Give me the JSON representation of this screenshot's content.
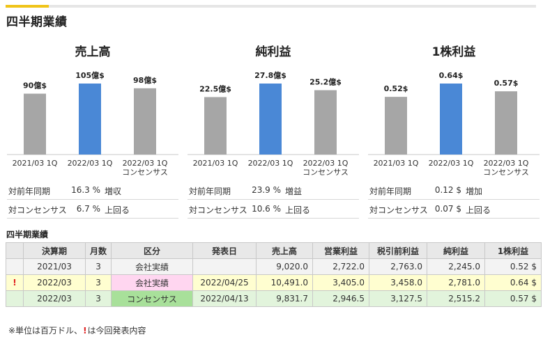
{
  "header": {
    "title": "四半期業績"
  },
  "colors": {
    "accent": "#f0c419",
    "bar_highlight": "#4a88d6",
    "bar_normal": "#a6a6a6",
    "row_new": "#fffed0",
    "row_consensus": "#e2f4dc",
    "kbn_actual": "#ffd6f0",
    "kbn_consensus": "#a8e09a",
    "mark": "#e02020"
  },
  "chart_data": [
    {
      "type": "bar",
      "title": "売上高",
      "categories": [
        "2021/03 1Q",
        "2022/03 1Q",
        "2022/03 1Q\nコンセンサス"
      ],
      "values": [
        90,
        105,
        98
      ],
      "value_labels": [
        "90億$",
        "105億$",
        "98億$"
      ],
      "highlight_index": 1,
      "ylim": [
        0,
        105
      ]
    },
    {
      "type": "bar",
      "title": "純利益",
      "categories": [
        "2021/03 1Q",
        "2022/03 1Q",
        "2022/03 1Q\nコンセンサス"
      ],
      "values": [
        22.5,
        27.8,
        25.2
      ],
      "value_labels": [
        "22.5億$",
        "27.8億$",
        "25.2億$"
      ],
      "highlight_index": 1,
      "ylim": [
        0,
        27.8
      ]
    },
    {
      "type": "bar",
      "title": "1株利益",
      "categories": [
        "2021/03 1Q",
        "2022/03 1Q",
        "2022/03 1Q\nコンセンサス"
      ],
      "values": [
        0.52,
        0.64,
        0.57
      ],
      "value_labels": [
        "0.52$",
        "0.64$",
        "0.57$"
      ],
      "highlight_index": 1,
      "ylim": [
        0,
        0.64
      ]
    }
  ],
  "panels": [
    {
      "title": "売上高",
      "rows": [
        {
          "label": "対前年同期",
          "value": "16.3 %",
          "word": "増収"
        },
        {
          "label": "対コンセンサス",
          "value": "6.7 %",
          "word": "上回る"
        }
      ]
    },
    {
      "title": "純利益",
      "rows": [
        {
          "label": "対前年同期",
          "value": "23.9 %",
          "word": "増益"
        },
        {
          "label": "対コンセンサス",
          "value": "10.6 %",
          "word": "上回る"
        }
      ]
    },
    {
      "title": "1株利益",
      "rows": [
        {
          "label": "対前年同期",
          "value": "0.12 $",
          "word": "増加"
        },
        {
          "label": "対コンセンサス",
          "value": "0.07 $",
          "word": "上回る"
        }
      ]
    }
  ],
  "table": {
    "title": "四半期業績",
    "headers": [
      "",
      "決算期",
      "月数",
      "区分",
      "発表日",
      "売上高",
      "営業利益",
      "税引前利益",
      "純利益",
      "1株利益"
    ],
    "rows": [
      {
        "mark": "",
        "period": "2021/03",
        "months": "3",
        "kbn": "会社実績",
        "date": "",
        "sales": "9,020.0",
        "op": "2,722.0",
        "pretax": "2,763.0",
        "net": "2,245.0",
        "eps": "0.52 $"
      },
      {
        "mark": "!",
        "period": "2022/03",
        "months": "3",
        "kbn": "会社実績",
        "date": "2022/04/25",
        "sales": "10,491.0",
        "op": "3,405.0",
        "pretax": "3,458.0",
        "net": "2,781.0",
        "eps": "0.64 $"
      },
      {
        "mark": "",
        "period": "2022/03",
        "months": "3",
        "kbn": "コンセンサス",
        "date": "2022/04/13",
        "sales": "9,831.7",
        "op": "2,946.5",
        "pretax": "3,127.5",
        "net": "2,515.2",
        "eps": "0.57 $"
      }
    ]
  },
  "footnote": {
    "before": "※単位は百万ドル、",
    "mark": "!",
    "after": "は今回発表内容"
  }
}
